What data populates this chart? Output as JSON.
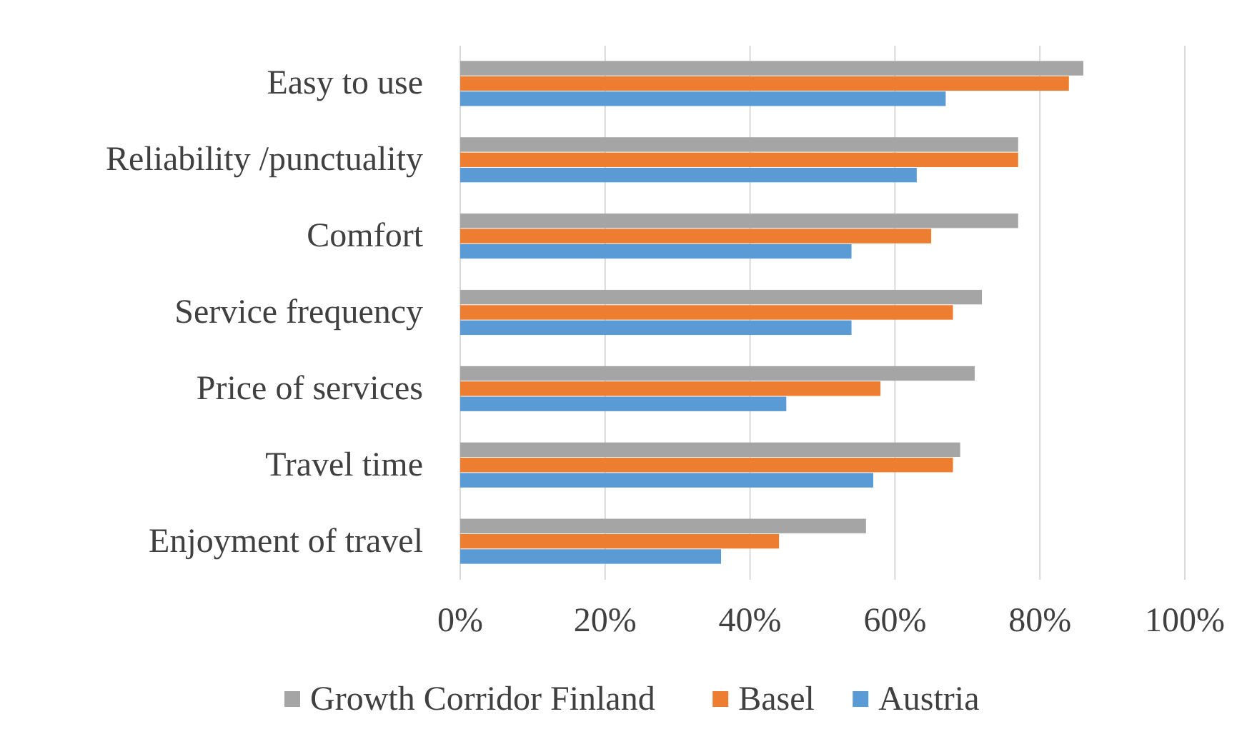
{
  "chart_data": {
    "type": "bar",
    "orientation": "horizontal",
    "categories": [
      "Easy to use",
      "Reliability /punctuality",
      "Comfort",
      "Service frequency",
      "Price of services",
      "Travel time",
      "Enjoyment of travel"
    ],
    "series": [
      {
        "name": "Growth Corridor Finland",
        "color": "#a5a5a5",
        "values": [
          0.86,
          0.77,
          0.77,
          0.72,
          0.71,
          0.69,
          0.56
        ]
      },
      {
        "name": "Basel",
        "color": "#ed7d31",
        "values": [
          0.84,
          0.77,
          0.65,
          0.68,
          0.58,
          0.68,
          0.44
        ]
      },
      {
        "name": "Austria",
        "color": "#5b9bd5",
        "values": [
          0.67,
          0.63,
          0.54,
          0.54,
          0.45,
          0.57,
          0.36
        ]
      }
    ],
    "xlim": [
      0,
      1
    ],
    "xticks": [
      {
        "value": 0,
        "label": "0%"
      },
      {
        "value": 0.2,
        "label": "20%"
      },
      {
        "value": 0.4,
        "label": "40%"
      },
      {
        "value": 0.6,
        "label": "60%"
      },
      {
        "value": 0.8,
        "label": "80%"
      },
      {
        "value": 1,
        "label": "100%"
      }
    ],
    "grid": "x",
    "legend": "bottom"
  }
}
